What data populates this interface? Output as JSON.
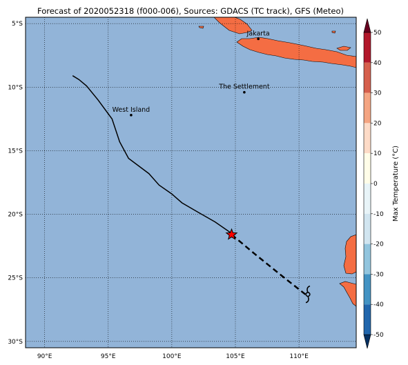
{
  "title": "Forecast of 2020052318 (f000-006), Sources: GDACS (TC track), GFS (Meteo)",
  "map": {
    "lon_range": [
      88.5,
      114.5
    ],
    "lat_range": [
      -30.5,
      -4.5
    ],
    "lon_ticks": [
      90,
      95,
      100,
      105,
      110
    ],
    "lat_ticks": [
      -5,
      -10,
      -15,
      -20,
      -25,
      -30
    ],
    "lon_tick_labels": [
      "90°E",
      "95°E",
      "100°E",
      "105°E",
      "110°E"
    ],
    "lat_tick_labels": [
      "5°S",
      "10°S",
      "15°S",
      "20°S",
      "25°S",
      "30°S"
    ],
    "grid": "dotted",
    "ocean_color": "#92b4d8",
    "land_color": "#f46d43"
  },
  "places": [
    {
      "name": "Jakarta",
      "lon": 106.8,
      "lat": -6.2
    },
    {
      "name": "The Settlement",
      "lon": 105.7,
      "lat": -10.4
    },
    {
      "name": "West Island",
      "lon": 96.8,
      "lat": -12.2
    }
  ],
  "track": {
    "past": [
      {
        "lon": 92.2,
        "lat": -9.1
      },
      {
        "lon": 92.7,
        "lat": -9.4
      },
      {
        "lon": 93.3,
        "lat": -9.9
      },
      {
        "lon": 94.2,
        "lat": -11.0
      },
      {
        "lon": 95.3,
        "lat": -12.5
      },
      {
        "lon": 95.9,
        "lat": -14.3
      },
      {
        "lon": 96.6,
        "lat": -15.6
      },
      {
        "lon": 98.2,
        "lat": -16.8
      },
      {
        "lon": 99.0,
        "lat": -17.7
      },
      {
        "lon": 100.0,
        "lat": -18.4
      },
      {
        "lon": 100.8,
        "lat": -19.1
      },
      {
        "lon": 102.0,
        "lat": -19.8
      },
      {
        "lon": 103.4,
        "lat": -20.6
      },
      {
        "lon": 104.7,
        "lat": -21.5
      }
    ],
    "current": {
      "lon": 104.7,
      "lat": -21.6,
      "color": "#ff0000"
    },
    "forecast": [
      {
        "lon": 104.7,
        "lat": -21.6
      },
      {
        "lon": 106.5,
        "lat": -23.1
      },
      {
        "lon": 108.6,
        "lat": -24.8
      },
      {
        "lon": 110.5,
        "lat": -26.3
      }
    ],
    "cyclone_symbol": {
      "lon": 110.7,
      "lat": -26.3,
      "icon": "cyclone-icon"
    }
  },
  "colorbar": {
    "label": "Max Temperature (°C)",
    "ticks": [
      50,
      40,
      30,
      20,
      10,
      0,
      -10,
      -20,
      -30,
      -40,
      -50
    ],
    "colors": [
      "#67001f",
      "#b2182b",
      "#d6604d",
      "#f4a582",
      "#fddbc7",
      "#fffde8",
      "#e8f4f8",
      "#d1e5f0",
      "#92c5de",
      "#4393c3",
      "#2166ac",
      "#053061"
    ],
    "extend": "both"
  }
}
